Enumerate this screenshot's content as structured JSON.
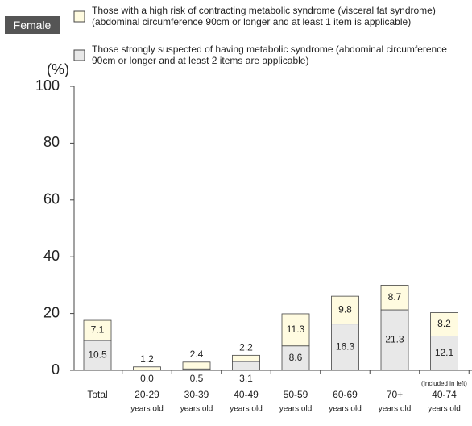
{
  "chart_data": {
    "type": "stacked_bar",
    "subtitle": "Female",
    "y_label": "(%)",
    "categories": [
      "Total",
      "20-29",
      "30-39",
      "40-49",
      "50-59",
      "60-69",
      "70+",
      "40-74"
    ],
    "category_suffix": [
      null,
      "years old",
      "years old",
      "years old",
      "years old",
      "years old",
      "years old",
      "years old"
    ],
    "category_prefix": [
      null,
      null,
      null,
      null,
      null,
      null,
      null,
      "(Included in left)"
    ],
    "series": [
      {
        "name": "Those strongly suspected of having metabolic syndrome (abdominal circumference 90cm or longer and at least 2 items are applicable)",
        "color": "#e8e8e8",
        "values": [
          10.5,
          0,
          0.5,
          3.1,
          8.6,
          16.3,
          21.3,
          12.1
        ],
        "value_labels": [
          "10.5",
          "0.0",
          "0.5",
          "3.1",
          "8.6",
          "16.3",
          "21.3",
          "12.1"
        ]
      },
      {
        "name": "Those with a high risk of contracting metabolic syndrome (visceral fat syndrome) (abdominal circumference 90cm or longer and at least 1 item is applicable)",
        "color": "#fffbe0",
        "values": [
          7.1,
          1.2,
          2.4,
          2.2,
          11.3,
          9.8,
          8.7,
          8.2
        ],
        "value_labels": [
          "7.1",
          "1.2",
          "2.4",
          "2.2",
          "11.3",
          "9.8",
          "8.7",
          "8.2"
        ]
      }
    ],
    "ylim": [
      0,
      100
    ],
    "yticks": [
      0,
      20,
      40,
      60,
      80,
      100
    ]
  }
}
